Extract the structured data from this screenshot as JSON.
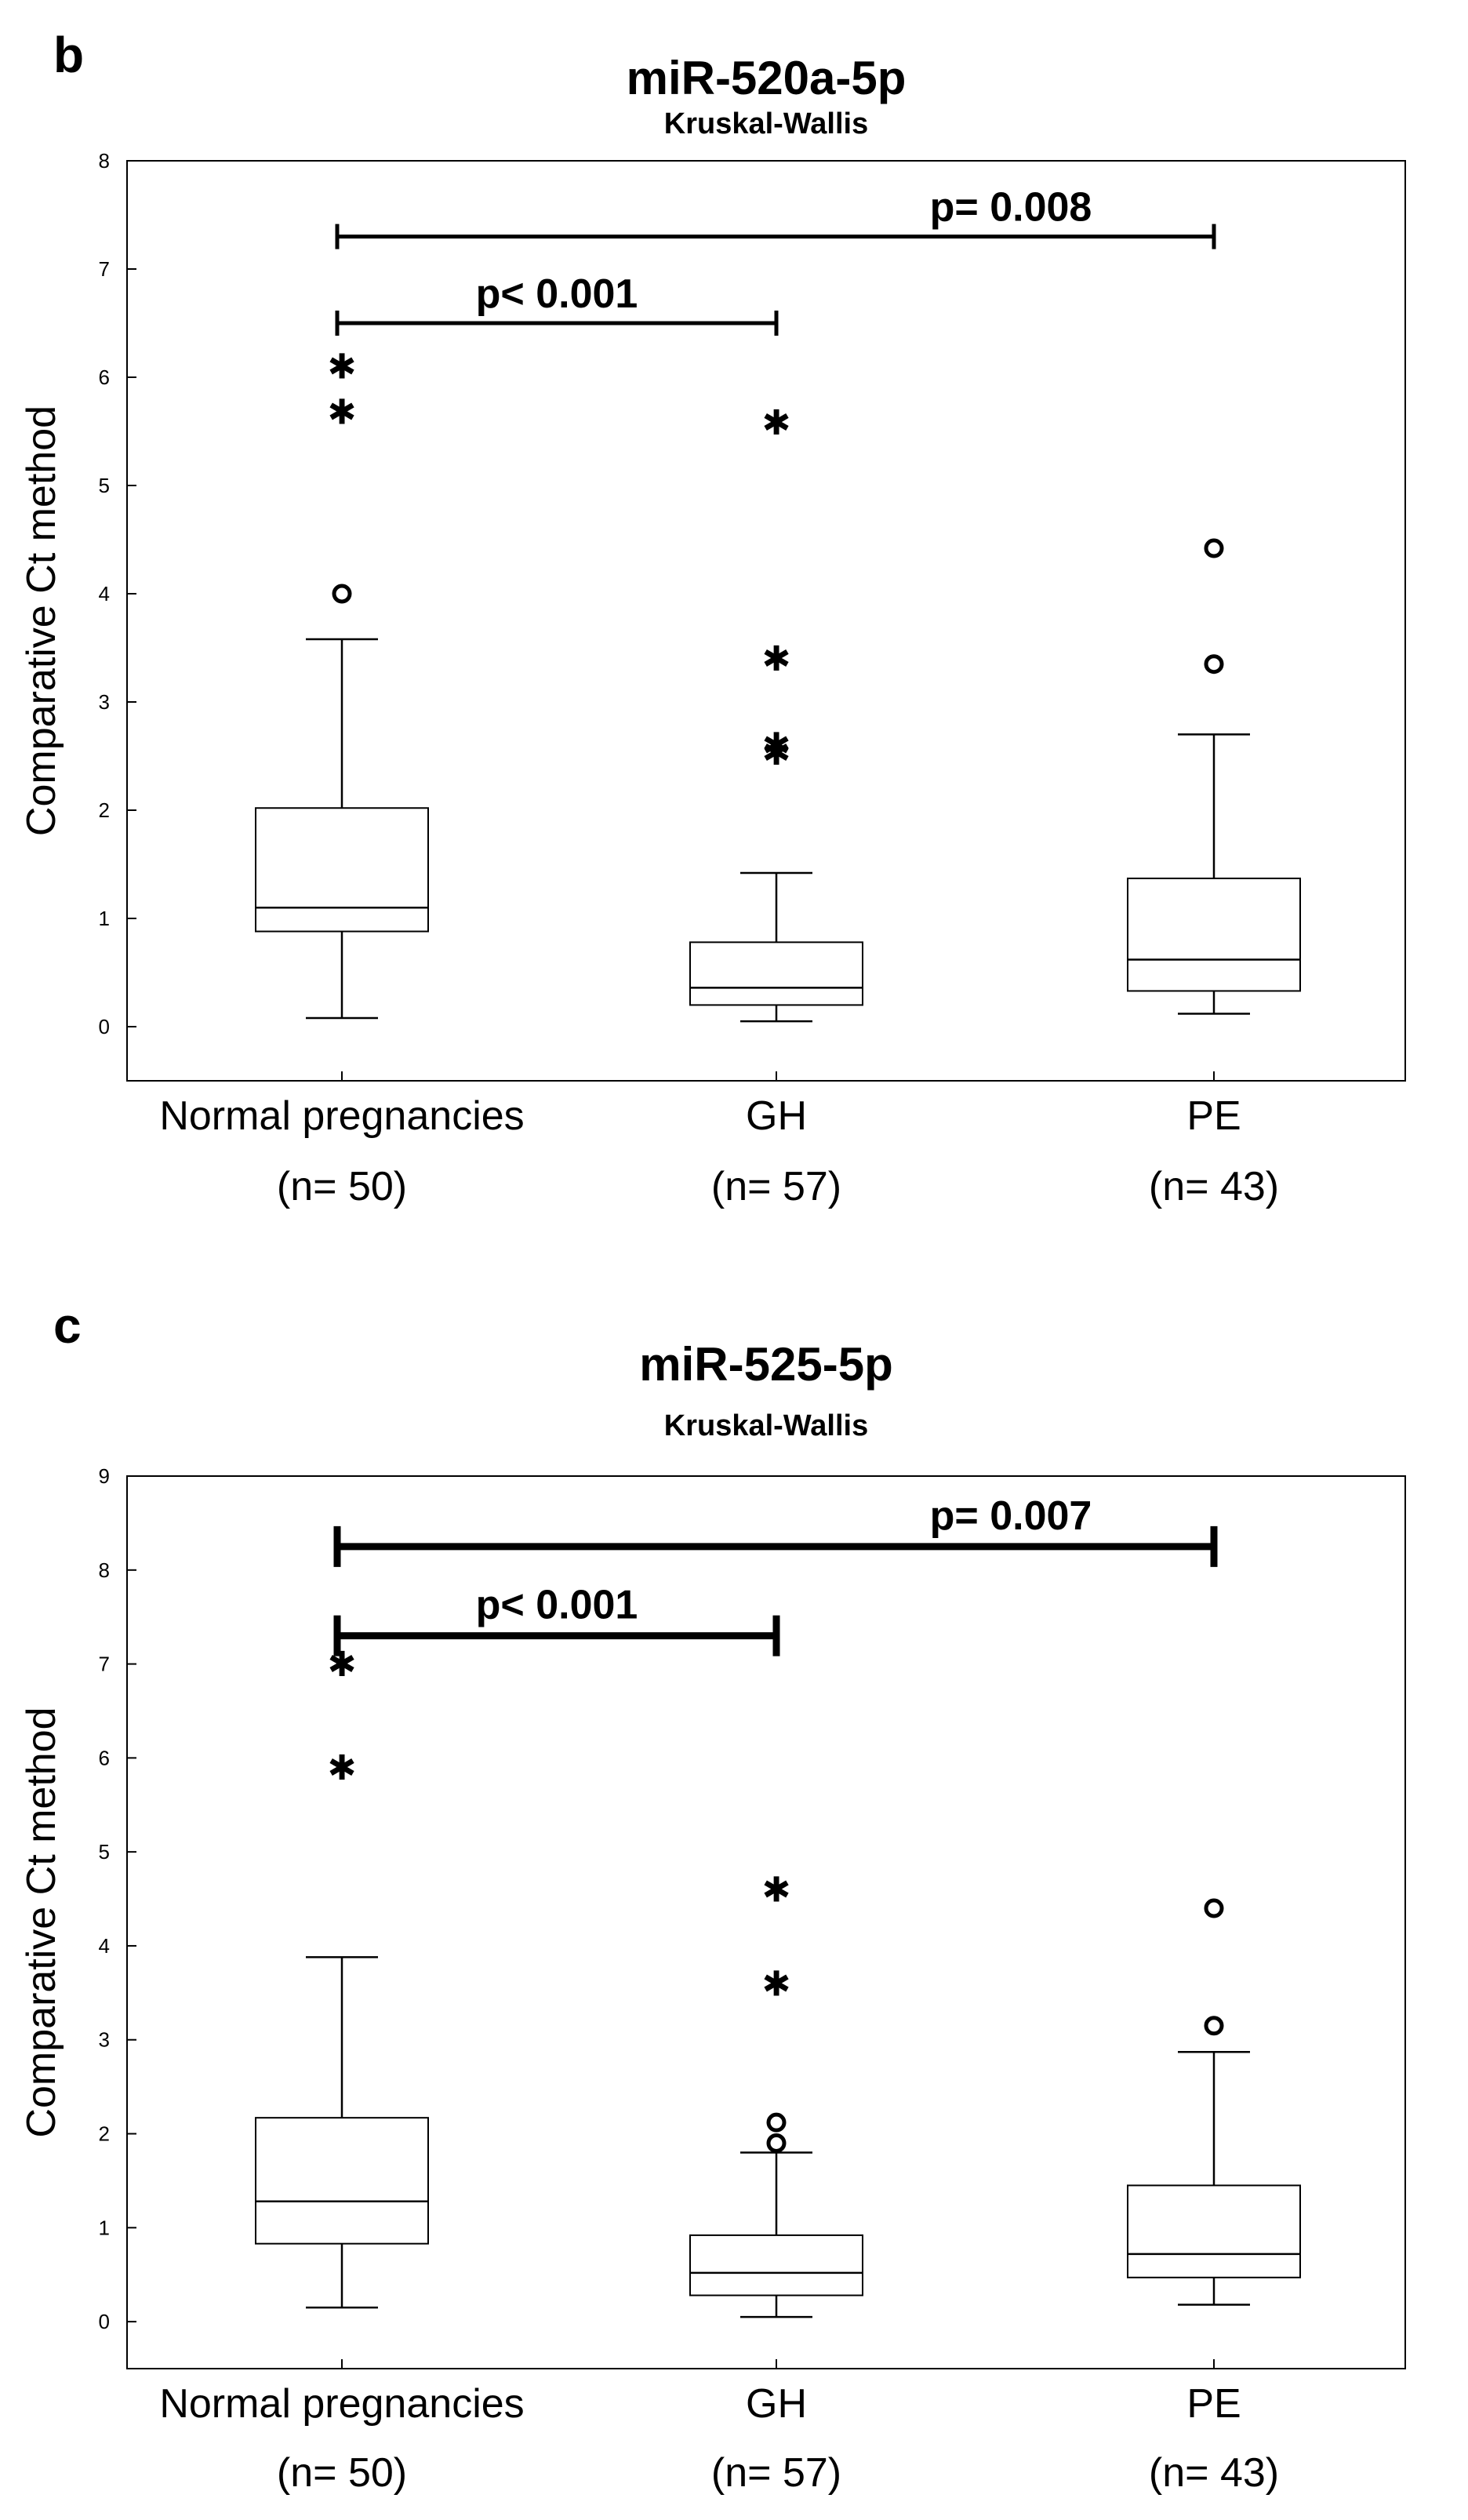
{
  "charts": [
    {
      "panel_letter": "b",
      "title": "miR-520a-5p",
      "subtitle": "Kruskal-Wallis",
      "ylabel": "Comparative Ct method",
      "categories": [
        "Normal pregnancies",
        "GH",
        "PE"
      ],
      "category_n": [
        "(n= 50)",
        "(n= 57)",
        "(n= 43)"
      ],
      "comparisons": [
        {
          "from": 0,
          "to": 2,
          "label": "p= 0.008",
          "y": 7.3
        },
        {
          "from": 0,
          "to": 1,
          "label": "p< 0.001",
          "y": 6.5
        }
      ]
    },
    {
      "panel_letter": "c",
      "title": "miR-525-5p",
      "subtitle": "Kruskal-Wallis",
      "ylabel": "Comparative Ct method",
      "categories": [
        "Normal pregnancies",
        "GH",
        "PE"
      ],
      "category_n": [
        "(n= 50)",
        "(n= 57)",
        "(n= 43)"
      ],
      "comparisons": [
        {
          "from": 0,
          "to": 2,
          "label": "p= 0.007",
          "y": 8.25
        },
        {
          "from": 0,
          "to": 1,
          "label": "p< 0.001",
          "y": 7.3
        }
      ]
    }
  ],
  "chart_data": [
    {
      "type": "box",
      "title": "miR-520a-5p",
      "subtitle": "Kruskal-Wallis",
      "ylabel": "Comparative Ct method",
      "xlabel": "",
      "ylim": [
        -0.5,
        8
      ],
      "yticks": [
        0,
        1,
        2,
        3,
        4,
        5,
        6,
        7,
        8
      ],
      "categories": [
        "Normal pregnancies",
        "GH",
        "PE"
      ],
      "n": [
        50,
        57,
        43
      ],
      "boxes": [
        {
          "whisker_low": 0.08,
          "q1": 0.88,
          "median": 1.1,
          "q3": 2.02,
          "whisker_high": 3.58,
          "outliers": [
            4.0
          ],
          "extremes": [
            5.7,
            6.12
          ]
        },
        {
          "whisker_low": 0.05,
          "q1": 0.2,
          "median": 0.36,
          "q3": 0.78,
          "whisker_high": 1.42,
          "outliers": [],
          "extremes": [
            2.55,
            2.62,
            3.42,
            5.6
          ]
        },
        {
          "whisker_low": 0.12,
          "q1": 0.33,
          "median": 0.62,
          "q3": 1.37,
          "whisker_high": 2.7,
          "outliers": [
            3.35,
            4.42
          ],
          "extremes": []
        }
      ],
      "grid": false
    },
    {
      "type": "box",
      "title": "miR-525-5p",
      "subtitle": "Kruskal-Wallis",
      "ylabel": "Comparative Ct method",
      "xlabel": "",
      "ylim": [
        -0.5,
        9
      ],
      "yticks": [
        0,
        1,
        2,
        3,
        4,
        5,
        6,
        7,
        8,
        9
      ],
      "categories": [
        "Normal pregnancies",
        "GH",
        "PE"
      ],
      "n": [
        50,
        57,
        43
      ],
      "boxes": [
        {
          "whisker_low": 0.15,
          "q1": 0.83,
          "median": 1.28,
          "q3": 2.17,
          "whisker_high": 3.88,
          "outliers": [],
          "extremes": [
            5.92,
            7.02
          ]
        },
        {
          "whisker_low": 0.05,
          "q1": 0.28,
          "median": 0.52,
          "q3": 0.92,
          "whisker_high": 1.8,
          "outliers": [
            1.9,
            2.12
          ],
          "extremes": [
            3.62,
            4.62
          ]
        },
        {
          "whisker_low": 0.18,
          "q1": 0.47,
          "median": 0.72,
          "q3": 1.45,
          "whisker_high": 2.87,
          "outliers": [
            3.15,
            4.4
          ],
          "extremes": []
        }
      ],
      "grid": false
    }
  ]
}
